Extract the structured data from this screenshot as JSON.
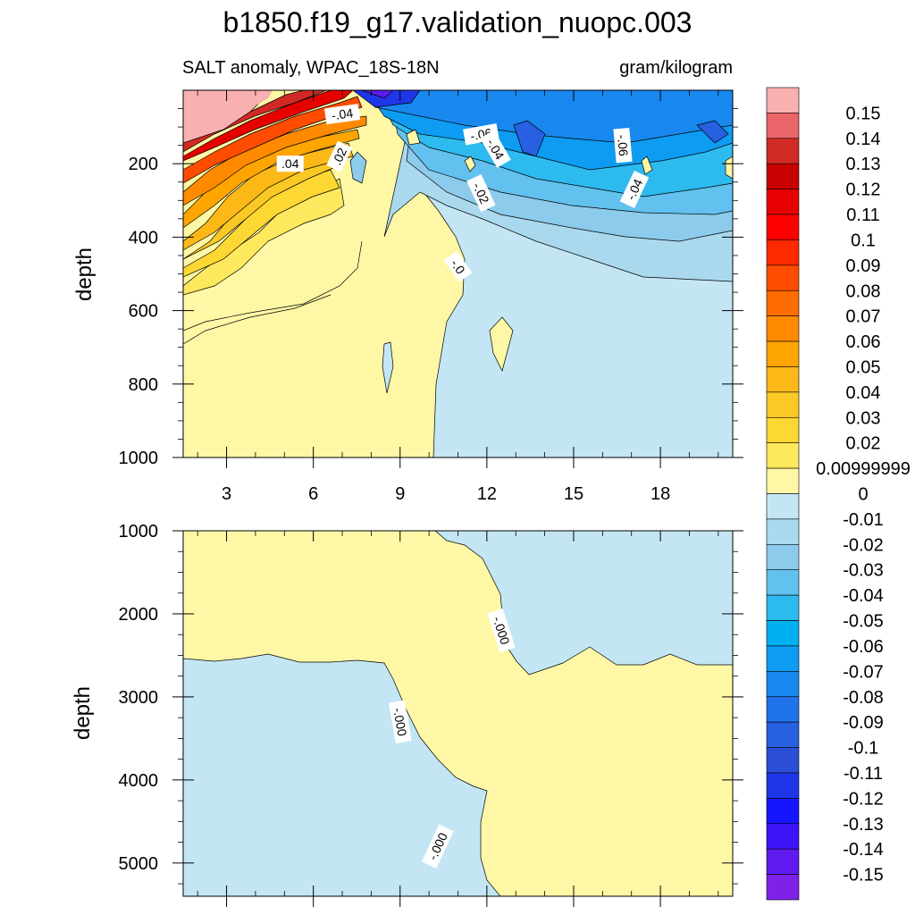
{
  "chart_data": {
    "type": "heatmap",
    "title": "b1850.f19_g17.validation_nuopc.003",
    "subtitle_left": "SALT anomaly, WPAC_18S-18N",
    "units": "gram/kilogram",
    "x_tick_labels": [
      "3",
      "6",
      "9",
      "12",
      "15",
      "18"
    ],
    "x_ticks": [
      3,
      6,
      9,
      12,
      15,
      18
    ],
    "xlim": [
      1.5,
      20.5
    ],
    "panels": [
      {
        "name": "upper",
        "ylabel": "depth",
        "ylim": [
          0,
          1000
        ],
        "y_tick_labels": [
          "200",
          "400",
          "600",
          "800",
          "1000"
        ],
        "y_ticks": [
          200,
          400,
          600,
          800,
          1000
        ],
        "contour_labels": [
          {
            "text": "-.04",
            "x": 7.0,
            "y": 65,
            "rot": -8
          },
          {
            "text": "-.06",
            "x": 11.8,
            "y": 120,
            "rot": -10
          },
          {
            "text": ".04",
            "x": 5.2,
            "y": 200,
            "rot": 0
          },
          {
            "text": ".02",
            "x": 6.9,
            "y": 180,
            "rot": -65
          },
          {
            "text": "-.04",
            "x": 12.3,
            "y": 160,
            "rot": 60
          },
          {
            "text": "-.06",
            "x": 16.7,
            "y": 150,
            "rot": 85
          },
          {
            "text": "-.02",
            "x": 11.8,
            "y": 280,
            "rot": 65
          },
          {
            "text": "-.04",
            "x": 17.1,
            "y": 270,
            "rot": -65
          },
          {
            "text": "-.0",
            "x": 11.0,
            "y": 480,
            "rot": 55
          }
        ]
      },
      {
        "name": "lower",
        "ylabel": "depth",
        "ylim": [
          1000,
          5400
        ],
        "y_tick_labels": [
          "1000",
          "2000",
          "3000",
          "4000",
          "5000"
        ],
        "y_ticks": [
          1000,
          2000,
          3000,
          4000,
          5000
        ],
        "contour_labels": [
          {
            "text": "-.000",
            "x": 12.5,
            "y": 2200,
            "rot": 72
          },
          {
            "text": "-.000",
            "x": 9.0,
            "y": 3300,
            "rot": 80
          },
          {
            "text": "-.000",
            "x": 10.3,
            "y": 4800,
            "rot": -65
          }
        ]
      }
    ],
    "colorbar": {
      "labels": [
        "0.15",
        "0.14",
        "0.13",
        "0.12",
        "0.11",
        "0.1",
        "0.09",
        "0.08",
        "0.07",
        "0.06",
        "0.05",
        "0.04",
        "0.03",
        "0.02",
        "0.00999999",
        "0",
        "-0.01",
        "-0.02",
        "-0.03",
        "-0.04",
        "-0.05",
        "-0.06",
        "-0.07",
        "-0.08",
        "-0.09",
        "-0.1",
        "-0.11",
        "-0.12",
        "-0.13",
        "-0.14",
        "-0.15"
      ],
      "colors": [
        "#f9b0b0",
        "#e9656a",
        "#d12a24",
        "#c80000",
        "#e60000",
        "#ff0000",
        "#ff2a00",
        "#ff4c00",
        "#ff6d00",
        "#ff8a00",
        "#ffa500",
        "#fbb817",
        "#fbc925",
        "#fdd832",
        "#fde85e",
        "#fef8a6",
        "#c4e6f4",
        "#aad9ee",
        "#8ccbec",
        "#62c1ee",
        "#2dbaef",
        "#00b0f0",
        "#0d9cf2",
        "#1888ee",
        "#2173ea",
        "#2760e0",
        "#2a4ed6",
        "#1e36e8",
        "#1515ff",
        "#3d14f6",
        "#5e1aef",
        "#7e22e8"
      ]
    }
  }
}
